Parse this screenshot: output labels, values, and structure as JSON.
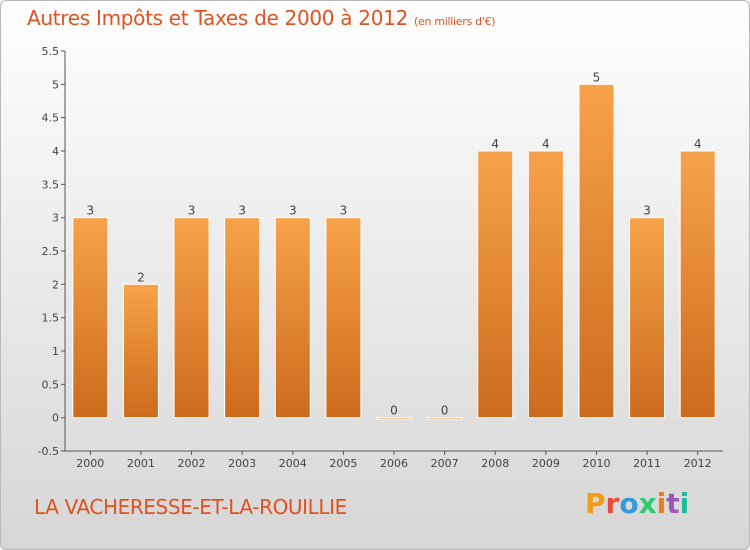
{
  "header": {
    "title": "Autres Impôts et Taxes de 2000 à 2012",
    "unit": "(en milliers d'€)"
  },
  "footer": {
    "commune": "LA VACHERESSE-ET-LA-ROUILLIE",
    "brand": "Proxiti"
  },
  "colors": {
    "bar_light": "#f7a24a",
    "bar_dark": "#cc6b1c",
    "title": "#e0521f",
    "brand_letters": [
      "#f39c12",
      "#e74c3c",
      "#3498db",
      "#2ecc71",
      "#e67e22",
      "#9b59b6",
      "#1abc9c"
    ]
  },
  "chart_data": {
    "type": "bar",
    "title": "Autres Impôts et Taxes de 2000 à 2012",
    "subtitle": "(en milliers d'€)",
    "xlabel": "",
    "ylabel": "",
    "categories": [
      "2000",
      "2001",
      "2002",
      "2003",
      "2004",
      "2005",
      "2006",
      "2007",
      "2008",
      "2009",
      "2010",
      "2011",
      "2012"
    ],
    "values": [
      3,
      2,
      3,
      3,
      3,
      3,
      0,
      0,
      4,
      4,
      5,
      3,
      4
    ],
    "data_labels": [
      "3",
      "2",
      "3",
      "3",
      "3",
      "3",
      "0",
      "0",
      "4",
      "4",
      "5",
      "3",
      "4"
    ],
    "ylim": [
      -0.5,
      5.5
    ],
    "yticks": [
      -0.5,
      0,
      0.5,
      1,
      1.5,
      2,
      2.5,
      3,
      3.5,
      4,
      4.5,
      5,
      5.5
    ],
    "ytick_labels": [
      "-0.5",
      "0",
      "0.5",
      "1",
      "1.5",
      "2",
      "2.5",
      "3",
      "3.5",
      "4",
      "4.5",
      "5",
      "5.5"
    ],
    "grid": false
  }
}
